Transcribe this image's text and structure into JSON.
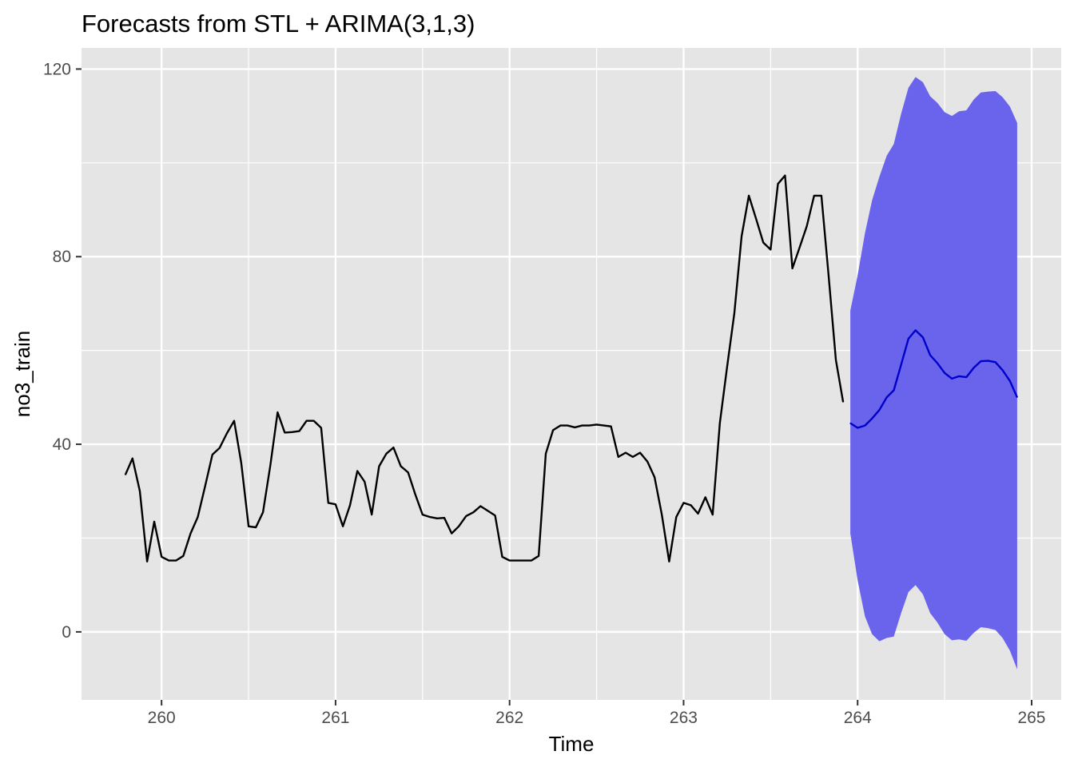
{
  "chart_data": {
    "type": "line",
    "title": "Forecasts from STL +  ARIMA(3,1,3)",
    "xlabel": "Time",
    "ylabel": "no3_train",
    "xlim": [
      259.54,
      265.17
    ],
    "ylim": [
      -14.5,
      124.5
    ],
    "x_ticks": [
      260,
      261,
      262,
      263,
      264,
      265
    ],
    "y_ticks": [
      0,
      40,
      80,
      120
    ],
    "x_tick_labels": [
      "260",
      "261",
      "262",
      "263",
      "264",
      "265"
    ],
    "y_tick_labels": [
      "0",
      "40",
      "80",
      "120"
    ],
    "grid": true,
    "background": "#e5e5e5",
    "gridline_color": "#ffffff",
    "series": [
      {
        "role": "observed",
        "color": "#000000",
        "x": [
          259.792,
          259.833,
          259.875,
          259.917,
          259.958,
          260.0,
          260.042,
          260.083,
          260.125,
          260.167,
          260.208,
          260.25,
          260.292,
          260.333,
          260.375,
          260.417,
          260.458,
          260.5,
          260.542,
          260.583,
          260.625,
          260.667,
          260.708,
          260.75,
          260.792,
          260.833,
          260.875,
          260.917,
          260.958,
          261.0,
          261.042,
          261.083,
          261.125,
          261.167,
          261.208,
          261.25,
          261.292,
          261.333,
          261.375,
          261.417,
          261.458,
          261.5,
          261.542,
          261.583,
          261.625,
          261.667,
          261.708,
          261.75,
          261.792,
          261.833,
          261.875,
          261.917,
          261.958,
          262.0,
          262.042,
          262.083,
          262.125,
          262.167,
          262.208,
          262.25,
          262.292,
          262.333,
          262.375,
          262.417,
          262.458,
          262.5,
          262.542,
          262.583,
          262.625,
          262.667,
          262.708,
          262.75,
          262.792,
          262.833,
          262.875,
          262.917,
          262.958,
          263.0,
          263.042,
          263.083,
          263.125,
          263.167,
          263.208,
          263.25,
          263.292,
          263.333,
          263.375,
          263.417,
          263.458,
          263.5,
          263.542,
          263.583,
          263.625,
          263.667,
          263.708,
          263.75,
          263.792,
          263.833,
          263.875,
          263.917
        ],
        "values": [
          33.5,
          37.0,
          30.0,
          15.0,
          23.5,
          16.0,
          15.2,
          15.2,
          16.2,
          21.0,
          24.5,
          31.0,
          37.8,
          39.2,
          42.3,
          45.0,
          36.0,
          22.5,
          22.3,
          25.5,
          35.5,
          46.8,
          42.5,
          42.6,
          42.8,
          45.0,
          45.0,
          43.5,
          27.5,
          27.2,
          22.5,
          27.0,
          34.3,
          32.0,
          25.0,
          35.3,
          38.0,
          39.3,
          35.3,
          34.0,
          29.3,
          25.0,
          24.5,
          24.2,
          24.3,
          21.0,
          22.5,
          24.7,
          25.5,
          26.8,
          25.8,
          24.8,
          16.0,
          15.2,
          15.2,
          15.2,
          15.2,
          16.2,
          38.0,
          43.0,
          44.0,
          44.0,
          43.6,
          44.0,
          44.0,
          44.2,
          44.0,
          43.8,
          37.3,
          38.2,
          37.3,
          38.2,
          36.3,
          33.0,
          25.0,
          15.0,
          24.5,
          27.5,
          27.0,
          25.2,
          28.7,
          25.0,
          44.5,
          56.5,
          68.0,
          84.3,
          93.0,
          88.0,
          83.0,
          81.5,
          95.5,
          97.3,
          77.5,
          82.0,
          86.5,
          93.0,
          93.0,
          76.0,
          58.0,
          49.0
        ]
      },
      {
        "role": "forecast",
        "color": "#0000cc",
        "x": [
          263.958,
          264.0,
          264.042,
          264.083,
          264.125,
          264.167,
          264.208,
          264.25,
          264.292,
          264.333,
          264.375,
          264.417,
          264.458,
          264.5,
          264.542,
          264.583,
          264.625,
          264.667,
          264.708,
          264.75,
          264.792,
          264.833,
          264.875,
          264.917
        ],
        "values": [
          44.5,
          43.5,
          44.0,
          45.5,
          47.3,
          50.0,
          51.5,
          57.0,
          62.5,
          64.3,
          62.8,
          59.0,
          57.3,
          55.2,
          54.0,
          54.5,
          54.3,
          56.3,
          57.7,
          57.8,
          57.5,
          55.8,
          53.5,
          50.0
        ]
      }
    ],
    "interval": {
      "color": "#6a63ec",
      "x": [
        263.958,
        264.0,
        264.042,
        264.083,
        264.125,
        264.167,
        264.208,
        264.25,
        264.292,
        264.333,
        264.375,
        264.417,
        264.458,
        264.5,
        264.542,
        264.583,
        264.625,
        264.667,
        264.708,
        264.75,
        264.792,
        264.833,
        264.875,
        264.917
      ],
      "lower": [
        21.0,
        11.0,
        3.3,
        -0.5,
        -2.0,
        -1.3,
        -1.0,
        4.0,
        8.5,
        10.0,
        8.0,
        4.0,
        2.0,
        -0.5,
        -1.8,
        -1.6,
        -1.9,
        -0.2,
        1.0,
        0.8,
        0.4,
        -1.3,
        -4.0,
        -8.0
      ],
      "upper": [
        68.5,
        76.0,
        85.0,
        92.0,
        97.0,
        101.5,
        104.0,
        110.5,
        116.0,
        118.3,
        117.2,
        114.2,
        112.8,
        110.8,
        110.0,
        111.0,
        111.2,
        113.5,
        115.0,
        115.2,
        115.3,
        114.0,
        112.0,
        108.5
      ]
    }
  }
}
